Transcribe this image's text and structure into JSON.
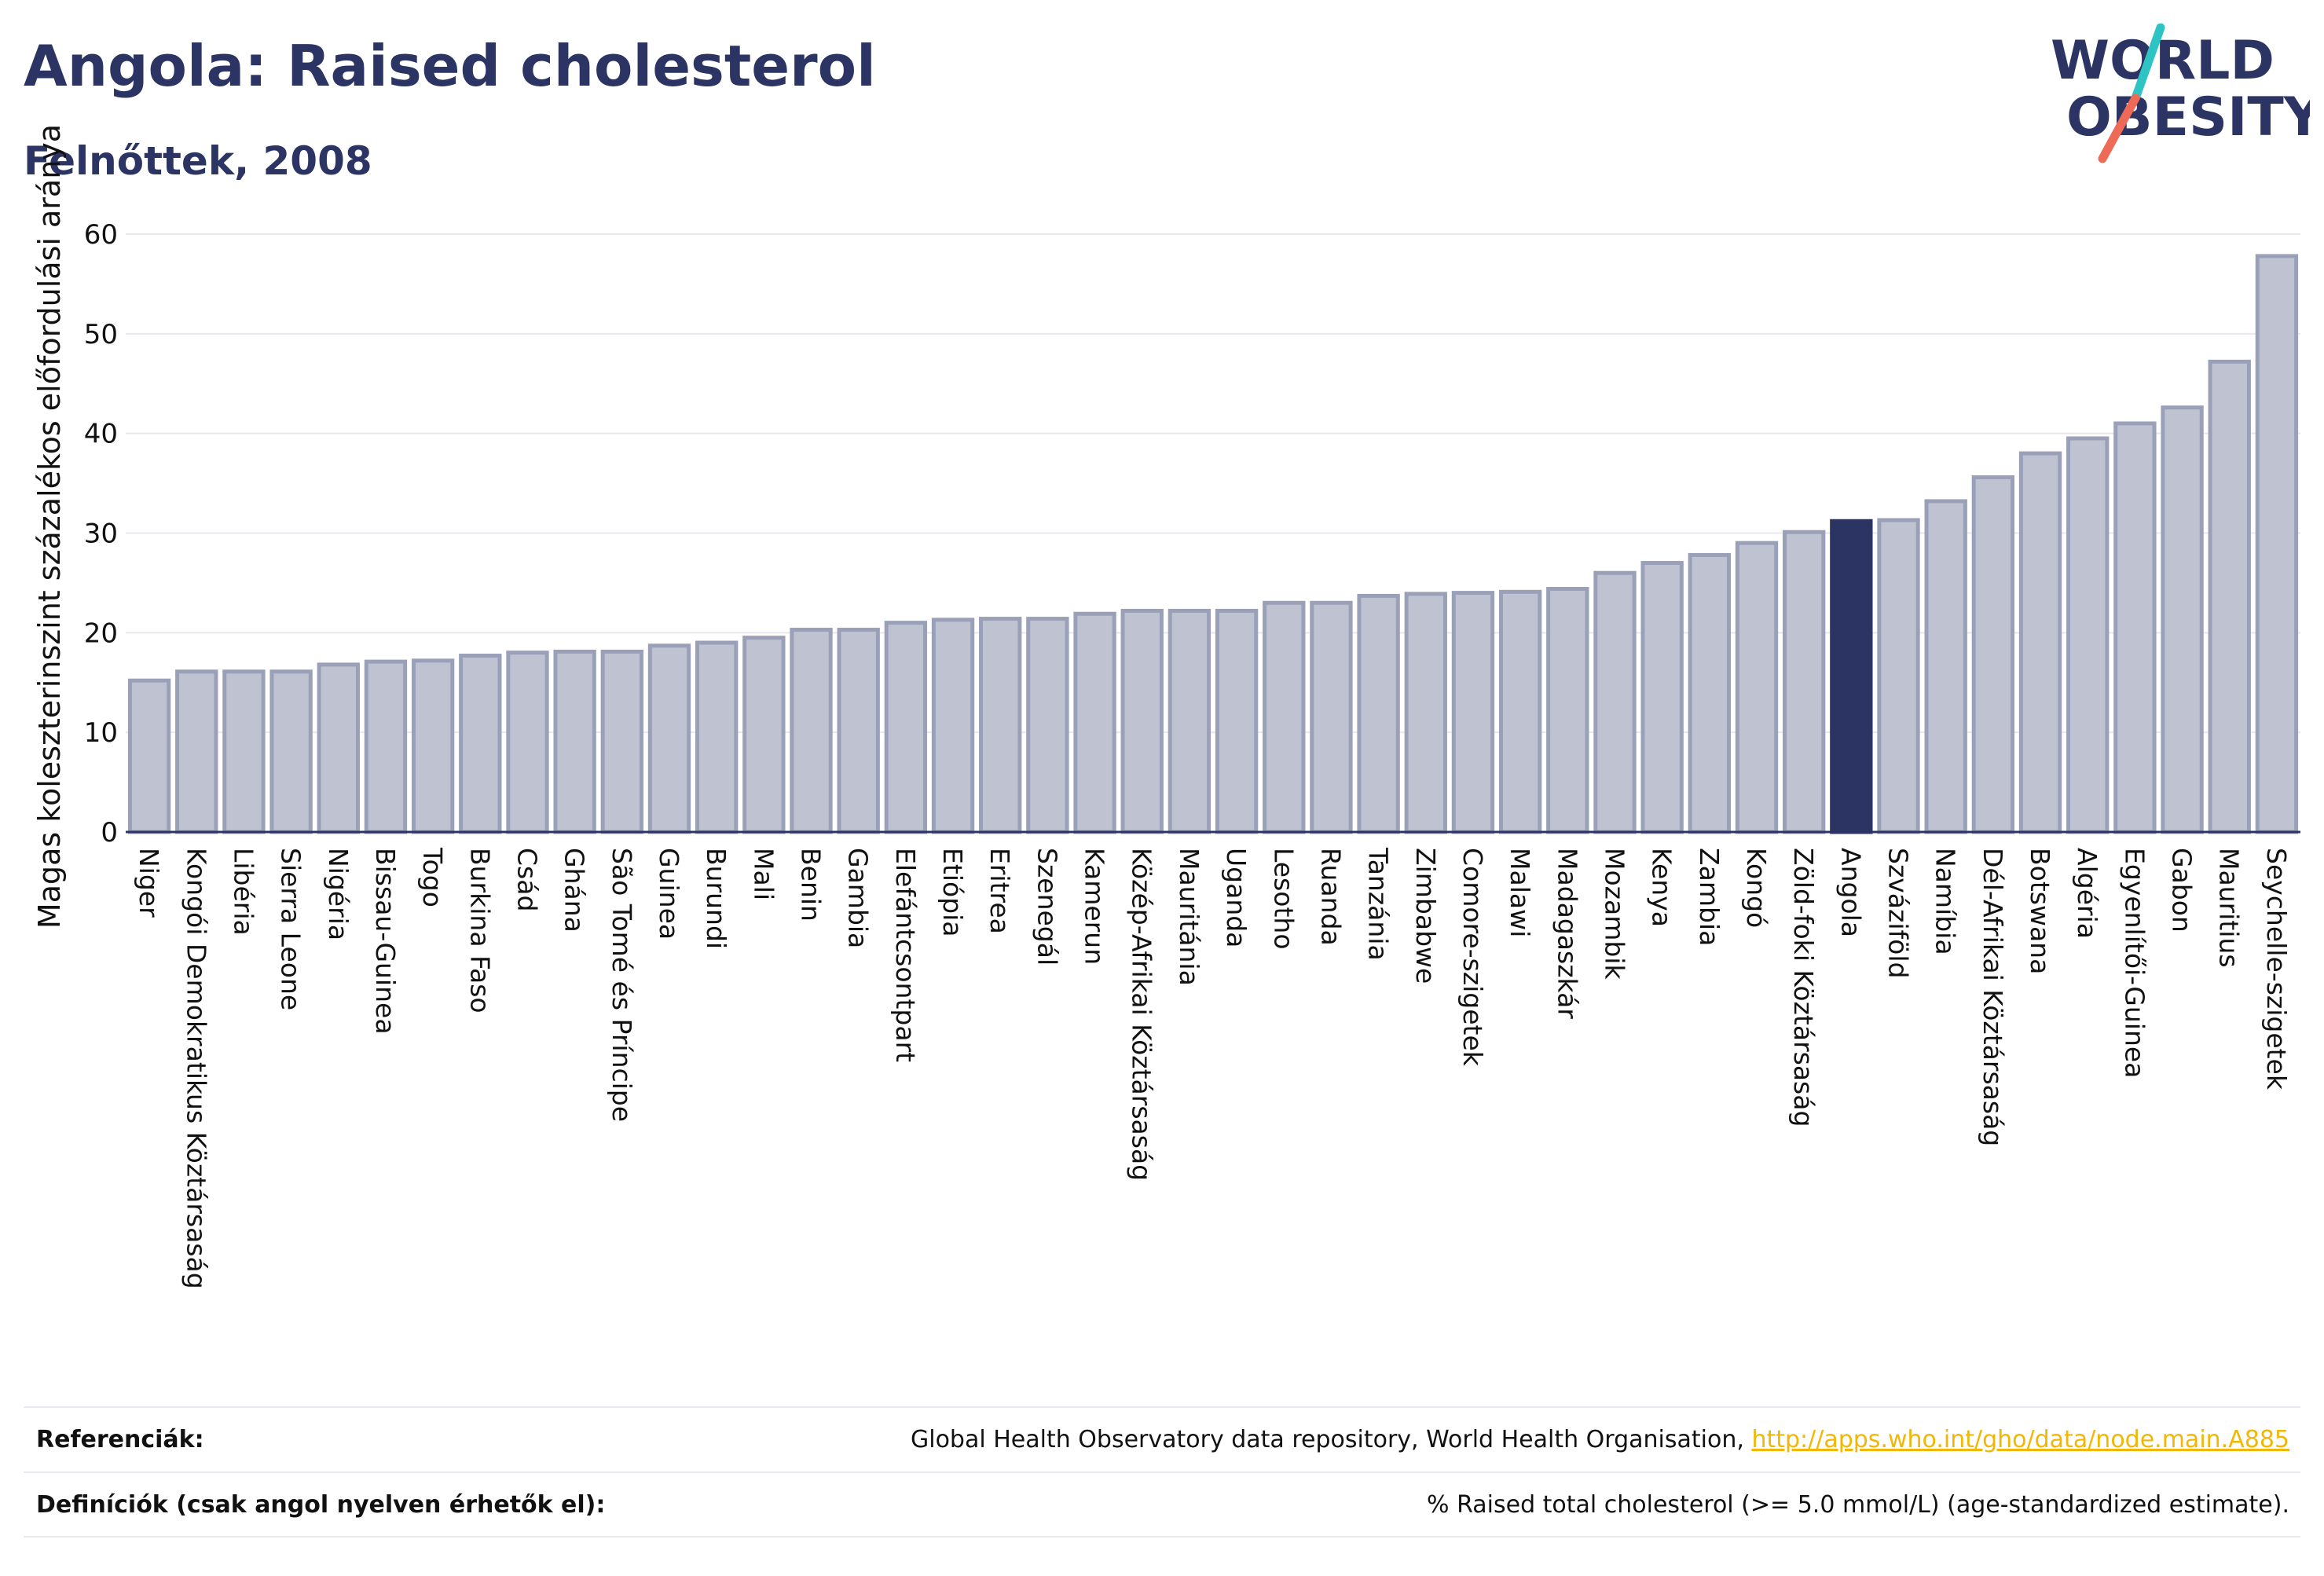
{
  "header": {
    "title": "Angola: Raised cholesterol",
    "subtitle": "Felnőttek, 2008"
  },
  "logo": {
    "line1": "WORLD",
    "line2": "OBESITY",
    "accent_teal": "#2ec4c4",
    "accent_coral": "#ee6a57"
  },
  "chart_data": {
    "type": "bar",
    "ylabel": "Magas koleszterinszint százalékos előfordulási aránya",
    "ylim": [
      0,
      60
    ],
    "yticks": [
      0,
      10,
      20,
      30,
      40,
      50,
      60
    ],
    "grid": true,
    "highlight": "Angola",
    "colors": {
      "bar": "#bfc3d1",
      "bar_edge": "#9aa0b8",
      "highlight": "#2b3463"
    },
    "categories": [
      "Niger",
      "Kongói Demokratikus Köztársaság",
      "Libéria",
      "Sierra Leone",
      "Nigéria",
      "Bissau-Guinea",
      "Togo",
      "Burkina Faso",
      "Csád",
      "Ghána",
      "São Tomé és Príncipe",
      "Guinea",
      "Burundi",
      "Mali",
      "Benin",
      "Gambia",
      "Elefántcsontpart",
      "Etiópia",
      "Eritrea",
      "Szenegál",
      "Kamerun",
      "Közép-Afrikai Köztársaság",
      "Mauritánia",
      "Uganda",
      "Lesotho",
      "Ruanda",
      "Tanzánia",
      "Zimbabwe",
      "Comore-szigetek",
      "Malawi",
      "Madagaszkár",
      "Mozambik",
      "Kenya",
      "Zambia",
      "Kongó",
      "Zöld-foki Köztársaság",
      "Angola",
      "Szváziföld",
      "Namíbia",
      "Dél-Afrikai Köztársaság",
      "Botswana",
      "Algéria",
      "Egyenlítői-Guinea",
      "Gabon",
      "Mauritius",
      "Seychelle-szigetek"
    ],
    "values": [
      15.2,
      16.1,
      16.1,
      16.1,
      16.8,
      17.1,
      17.2,
      17.7,
      18.0,
      18.1,
      18.1,
      18.7,
      19.0,
      19.5,
      20.3,
      20.3,
      21.0,
      21.3,
      21.4,
      21.4,
      21.9,
      22.2,
      22.2,
      22.2,
      23.0,
      23.0,
      23.7,
      23.9,
      24.0,
      24.1,
      24.4,
      26.0,
      27.0,
      27.8,
      29.0,
      30.1,
      31.2,
      31.3,
      33.2,
      35.6,
      38.0,
      39.5,
      41.0,
      42.6,
      47.2,
      57.8
    ]
  },
  "footer": {
    "references_label": "Referenciák:",
    "references_text": "Global Health Observatory data repository, World Health Organisation,",
    "references_link": "http://apps.who.int/gho/data/node.main.A885",
    "definitions_label": "Definíciók (csak angol nyelven érhetők el):",
    "definitions_text": "% Raised total cholesterol (>= 5.0 mmol/L) (age-standardized estimate)."
  }
}
